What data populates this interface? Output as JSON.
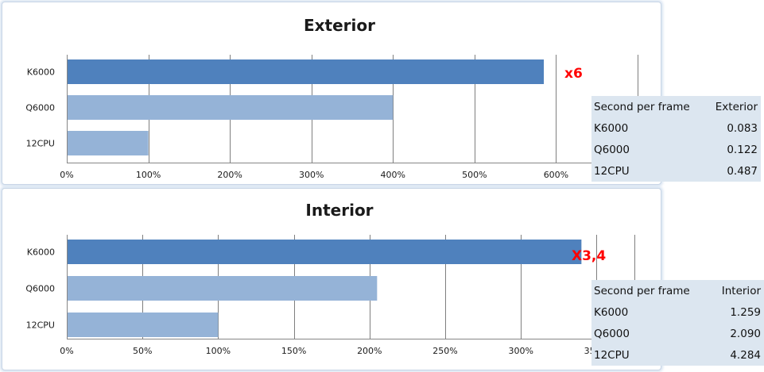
{
  "chart_data": [
    {
      "type": "bar",
      "orientation": "horizontal",
      "title": "Exterior",
      "categories": [
        "K6000",
        "Q6000",
        "12CPU"
      ],
      "values": [
        585,
        400,
        100
      ],
      "value_unit": "%",
      "xlim": [
        0,
        700
      ],
      "ticks": [
        "0%",
        "100%",
        "200%",
        "300%",
        "400%",
        "500%",
        "600%"
      ],
      "tick_values": [
        0,
        100,
        200,
        300,
        400,
        500,
        600
      ],
      "grid": true,
      "bar_colors": [
        "#4f81bd",
        "#95b3d7",
        "#95b3d7"
      ],
      "annotation": "x6",
      "table": {
        "header": [
          "Second per frame",
          "Exterior"
        ],
        "rows": [
          [
            "K6000",
            "0.083"
          ],
          [
            "Q6000",
            "0.122"
          ],
          [
            "12CPU",
            "0.487"
          ]
        ]
      }
    },
    {
      "type": "bar",
      "orientation": "horizontal",
      "title": "Interior",
      "categories": [
        "K6000",
        "Q6000",
        "12CPU"
      ],
      "values": [
        340,
        205,
        100
      ],
      "value_unit": "%",
      "xlim": [
        0,
        375
      ],
      "ticks": [
        "0%",
        "50%",
        "100%",
        "150%",
        "200%",
        "250%",
        "300%",
        "350%"
      ],
      "tick_values": [
        0,
        50,
        100,
        150,
        200,
        250,
        300,
        350
      ],
      "grid": true,
      "bar_colors": [
        "#4f81bd",
        "#95b3d7",
        "#95b3d7"
      ],
      "annotation": "X3,4",
      "table": {
        "header": [
          "Second per frame",
          "Interior"
        ],
        "rows": [
          [
            "K6000",
            "1.259"
          ],
          [
            "Q6000",
            "2.090"
          ],
          [
            "12CPU",
            "4.284"
          ]
        ]
      }
    }
  ]
}
